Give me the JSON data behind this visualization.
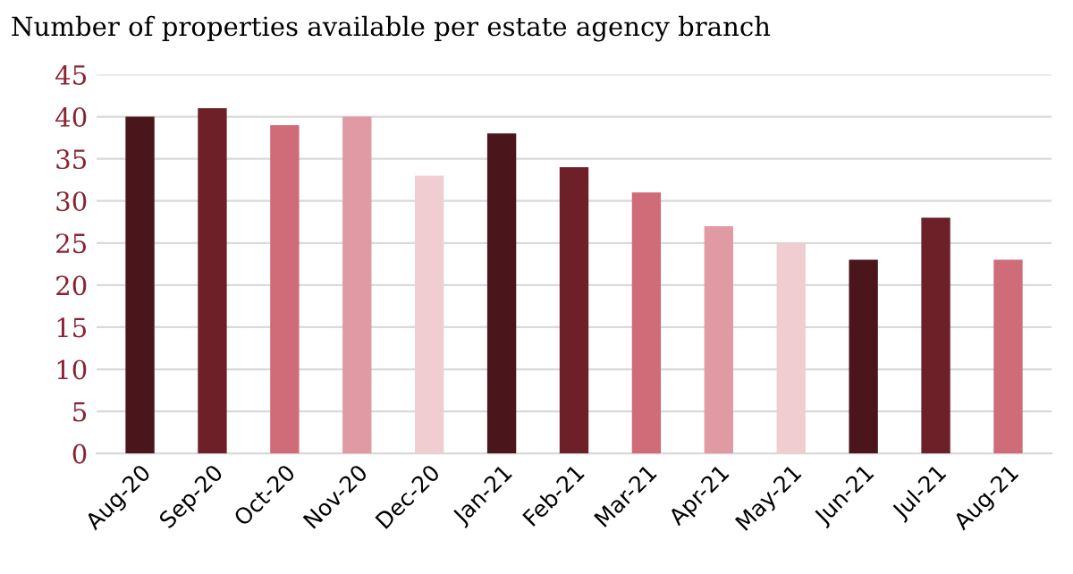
{
  "chart_data": {
    "type": "bar",
    "title": "Number of properties available per estate agency branch",
    "categories": [
      "Aug-20",
      "Sep-20",
      "Oct-20",
      "Nov-20",
      "Dec-20",
      "Jan-21",
      "Feb-21",
      "Mar-21",
      "Apr-21",
      "May-21",
      "Jun-21",
      "Jul-21",
      "Aug-21"
    ],
    "values": [
      40,
      41,
      39,
      40,
      33,
      38,
      34,
      31,
      27,
      25,
      23,
      28,
      23
    ],
    "colors": [
      "#4a161c",
      "#6e2029",
      "#d06b78",
      "#e09aa4",
      "#f0cdd1",
      "#4a161c",
      "#6e2029",
      "#d06b78",
      "#e09aa4",
      "#f0cdd1",
      "#4a161c",
      "#6e2029",
      "#d06b78"
    ],
    "ylim": [
      0,
      45
    ],
    "yticks": [
      0,
      5,
      10,
      15,
      20,
      25,
      30,
      35,
      40,
      45
    ],
    "grid": "y"
  }
}
